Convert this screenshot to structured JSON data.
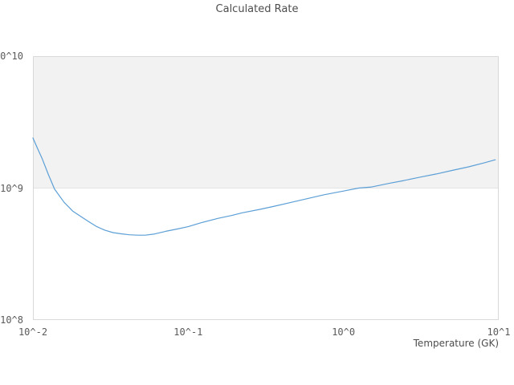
{
  "title": "Calculated Rate",
  "colors": {
    "background": "#ffffff",
    "band_fill": "#f2f2f2",
    "frame_border": "#d9d9d9",
    "gridline": "#e3e3e3",
    "line": "#5c9fd6",
    "title_text": "#4d4d4d",
    "tick_text": "#5a5a5a"
  },
  "chart_data": {
    "type": "line",
    "title": "Calculated Rate",
    "xlabel": "Temperature (GK)",
    "ylabel": "",
    "x_scale": "log",
    "y_scale": "log",
    "xlim": [
      0.01,
      10
    ],
    "ylim": [
      100000000.0,
      10000000000.0
    ],
    "x_tick_values": [
      0.01,
      0.1,
      1,
      10
    ],
    "x_tick_labels": [
      "10^-2",
      "10^-1",
      "10^0",
      "10^1"
    ],
    "y_tick_values": [
      100000000.0,
      1000000000.0,
      10000000000.0
    ],
    "y_tick_labels": [
      "10^8",
      "10^9",
      "10^10"
    ],
    "legend": "none",
    "grid": "shaded horizontal band between 1e9 and 1e10, gridline at 1e9",
    "series": [
      {
        "name": "calculated_rate",
        "color": "#5c9fd6",
        "x": [
          0.01,
          0.0107,
          0.0115,
          0.0126,
          0.0138,
          0.0159,
          0.018,
          0.0203,
          0.023,
          0.0258,
          0.029,
          0.0328,
          0.037,
          0.0417,
          0.047,
          0.053,
          0.06,
          0.0716,
          0.085,
          0.1,
          0.12,
          0.156,
          0.19,
          0.223,
          0.29,
          0.361,
          0.46,
          0.58,
          0.75,
          1.0,
          1.25,
          1.52,
          2.0,
          2.45,
          3.1,
          3.96,
          5.0,
          6.4,
          8.0,
          9.5
        ],
        "y": [
          2400000000.0,
          2000000000.0,
          1660000000.0,
          1260000000.0,
          980000000.0,
          780000000.0,
          670000000.0,
          610000000.0,
          555000000.0,
          510000000.0,
          480000000.0,
          460000000.0,
          450000000.0,
          443000000.0,
          440000000.0,
          440000000.0,
          448000000.0,
          470000000.0,
          490000000.0,
          510000000.0,
          545000000.0,
          590000000.0,
          620000000.0,
          650000000.0,
          690000000.0,
          730000000.0,
          780000000.0,
          830000000.0,
          890000000.0,
          950000000.0,
          1000000000.0,
          1020000000.0,
          1090000000.0,
          1140000000.0,
          1210000000.0,
          1280000000.0,
          1360000000.0,
          1450000000.0,
          1550000000.0,
          1640000000.0
        ]
      }
    ]
  }
}
